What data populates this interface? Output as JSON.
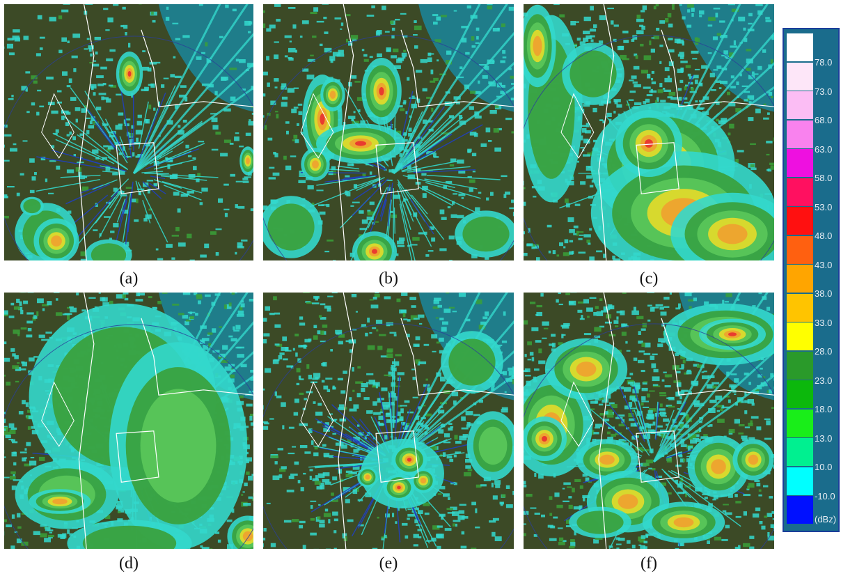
{
  "panels": [
    {
      "id": "a",
      "caption": "(a)"
    },
    {
      "id": "b",
      "caption": "(b)"
    },
    {
      "id": "c",
      "caption": "(c)"
    },
    {
      "id": "d",
      "caption": "(d)"
    },
    {
      "id": "e",
      "caption": "(e)"
    },
    {
      "id": "f",
      "caption": "(f)"
    }
  ],
  "legend": {
    "unit": "(dBz)",
    "levels": [
      {
        "label": "78.0",
        "color": "#ffffff"
      },
      {
        "label": "73.0",
        "color": "#fde6f8"
      },
      {
        "label": "68.0",
        "color": "#fbbdf4"
      },
      {
        "label": "63.0",
        "color": "#f982ee"
      },
      {
        "label": "58.0",
        "color": "#ee10e0"
      },
      {
        "label": "53.0",
        "color": "#ff1060"
      },
      {
        "label": "48.0",
        "color": "#ff1010"
      },
      {
        "label": "43.0",
        "color": "#ff6010"
      },
      {
        "label": "38.0",
        "color": "#ffa500"
      },
      {
        "label": "33.0",
        "color": "#ffc400"
      },
      {
        "label": "28.0",
        "color": "#ffff00"
      },
      {
        "label": "23.0",
        "color": "#2a9a2a"
      },
      {
        "label": "18.0",
        "color": "#0cb80c"
      },
      {
        "label": "13.0",
        "color": "#19ee19"
      },
      {
        "label": "10.0",
        "color": "#00f090"
      },
      {
        "label": "-10.0",
        "color": "#00ffff"
      },
      {
        "label": "",
        "color": "#0010ff"
      }
    ]
  },
  "colors": {
    "land": "#3c4a26",
    "sea": "#1f7d8a",
    "weak": "#33d8cc",
    "green": "#3aa038",
    "lightgreen": "#5bc85a",
    "yellow": "#e6dc2a",
    "orange": "#f0a030",
    "red": "#e83030",
    "border": "#ffffff"
  }
}
